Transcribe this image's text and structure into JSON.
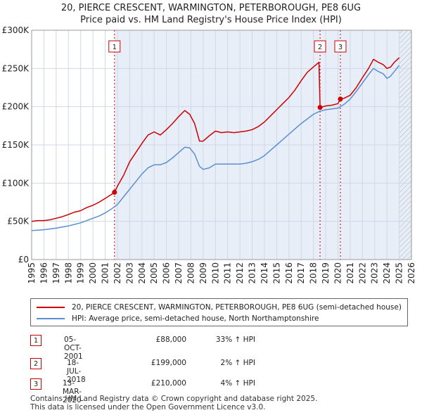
{
  "title_line1": "20, PIERCE CRESCENT, WARMINGTON, PETERBOROUGH, PE8 6UG",
  "title_line2": "Price paid vs. HM Land Registry's House Price Index (HPI)",
  "colors": {
    "property": "#cc0000",
    "hpi": "#5b8fd1",
    "shade": "#e8eef8",
    "grid": "#cfd8e8",
    "marker": "#cc0000"
  },
  "chart_data": {
    "type": "line",
    "title": "Price paid vs. HM Land Registry's House Price Index (HPI)",
    "xlim": [
      1995,
      2026
    ],
    "ylim": [
      0,
      300000
    ],
    "y_ticks": [
      0,
      50000,
      100000,
      150000,
      200000,
      250000,
      300000
    ],
    "y_tick_labels": [
      "£0",
      "£50K",
      "£100K",
      "£150K",
      "£200K",
      "£250K",
      "£300K"
    ],
    "x_ticks": [
      1995,
      1996,
      1997,
      1998,
      1999,
      2000,
      2001,
      2002,
      2003,
      2004,
      2005,
      2006,
      2007,
      2008,
      2009,
      2010,
      2011,
      2012,
      2013,
      2014,
      2015,
      2016,
      2017,
      2018,
      2019,
      2020,
      2021,
      2022,
      2023,
      2024,
      2025,
      2026
    ],
    "x_tick_labels": [
      "1995",
      "1996",
      "1997",
      "1998",
      "1999",
      "2000",
      "2001",
      "2002",
      "2003",
      "2004",
      "2005",
      "2006",
      "2007",
      "2008",
      "2009",
      "2010",
      "2011",
      "2012",
      "2013",
      "2014",
      "2015",
      "2016",
      "2017",
      "2018",
      "2019",
      "2020",
      "2021",
      "2022",
      "2023",
      "2024",
      "2025",
      "2026"
    ],
    "shaded_period": [
      2001.76,
      2026
    ],
    "hatched_period": [
      2025.0,
      2026
    ],
    "series": [
      {
        "name": "20, PIERCE CRESCENT, WARMINGTON, PETERBOROUGH, PE8 6UG (semi-detached house)",
        "x": [
          1995.0,
          1995.5,
          1996.0,
          1996.5,
          1997.0,
          1997.5,
          1998.0,
          1998.5,
          1999.0,
          1999.5,
          2000.0,
          2000.5,
          2001.0,
          2001.5,
          2001.76,
          2002.0,
          2002.5,
          2003.0,
          2003.5,
          2004.0,
          2004.5,
          2005.0,
          2005.5,
          2006.0,
          2006.5,
          2007.0,
          2007.5,
          2007.9,
          2008.3,
          2008.7,
          2009.0,
          2009.5,
          2010.0,
          2010.5,
          2011.0,
          2011.5,
          2012.0,
          2012.5,
          2013.0,
          2013.5,
          2014.0,
          2014.5,
          2015.0,
          2015.5,
          2016.0,
          2016.5,
          2017.0,
          2017.5,
          2018.0,
          2018.45,
          2018.54,
          2019.0,
          2019.5,
          2020.0,
          2020.2,
          2020.5,
          2021.0,
          2021.5,
          2022.0,
          2022.5,
          2022.9,
          2023.3,
          2023.7,
          2024.0,
          2024.3,
          2024.6,
          2025.0
        ],
        "values": [
          50000,
          51000,
          51000,
          52000,
          54000,
          56000,
          59000,
          62000,
          64000,
          68000,
          71000,
          75000,
          80000,
          85000,
          88000,
          96000,
          110000,
          128000,
          140000,
          152000,
          163000,
          167000,
          163000,
          170000,
          178000,
          187000,
          195000,
          190000,
          178000,
          155000,
          155000,
          162000,
          168000,
          166000,
          167000,
          166000,
          167000,
          168000,
          170000,
          174000,
          180000,
          188000,
          196000,
          204000,
          212000,
          222000,
          234000,
          245000,
          252000,
          258000,
          199000,
          201000,
          202000,
          204000,
          210000,
          211000,
          215000,
          225000,
          238000,
          250000,
          262000,
          258000,
          255000,
          250000,
          252000,
          258000,
          264000
        ]
      },
      {
        "name": "HPI: Average price, semi-detached house, North Northamptonshire",
        "x": [
          1995.0,
          1995.5,
          1996.0,
          1996.5,
          1997.0,
          1997.5,
          1998.0,
          1998.5,
          1999.0,
          1999.5,
          2000.0,
          2000.5,
          2001.0,
          2001.5,
          2002.0,
          2002.5,
          2003.0,
          2003.5,
          2004.0,
          2004.5,
          2005.0,
          2005.5,
          2006.0,
          2006.5,
          2007.0,
          2007.5,
          2007.9,
          2008.3,
          2008.7,
          2009.0,
          2009.5,
          2010.0,
          2010.5,
          2011.0,
          2011.5,
          2012.0,
          2012.5,
          2013.0,
          2013.5,
          2014.0,
          2014.5,
          2015.0,
          2015.5,
          2016.0,
          2016.5,
          2017.0,
          2017.5,
          2018.0,
          2018.5,
          2019.0,
          2019.5,
          2020.0,
          2020.5,
          2021.0,
          2021.5,
          2022.0,
          2022.5,
          2022.9,
          2023.3,
          2023.7,
          2024.0,
          2024.3,
          2024.6,
          2025.0
        ],
        "values": [
          38000,
          38500,
          39000,
          40000,
          41000,
          42500,
          44000,
          46000,
          48000,
          51000,
          54000,
          57000,
          61000,
          66000,
          72000,
          82000,
          92000,
          102000,
          112000,
          120000,
          124000,
          124000,
          127000,
          133000,
          140000,
          147000,
          146000,
          138000,
          122000,
          118000,
          120000,
          125000,
          125000,
          125000,
          125000,
          125000,
          126000,
          128000,
          131000,
          136000,
          143000,
          150000,
          157000,
          164000,
          171000,
          178000,
          184000,
          190000,
          194000,
          196000,
          197000,
          198000,
          203000,
          210000,
          220000,
          231000,
          242000,
          250000,
          246000,
          243000,
          237000,
          240000,
          246000,
          254000
        ]
      }
    ],
    "transactions": [
      {
        "label": "1",
        "date": "05-OCT-2001",
        "x": 2001.76,
        "price": 88000,
        "price_label": "£88,000",
        "hpi": "33% ↑ HPI"
      },
      {
        "label": "2",
        "date": "18-JUL-2018",
        "x": 2018.54,
        "price": 199000,
        "price_label": "£199,000",
        "hpi": "2% ↑ HPI"
      },
      {
        "label": "3",
        "date": "13-MAR-2020",
        "x": 2020.2,
        "price": 210000,
        "price_label": "£210,000",
        "hpi": "4% ↑ HPI"
      }
    ]
  },
  "legend": {
    "property": "20, PIERCE CRESCENT, WARMINGTON, PETERBOROUGH, PE8 6UG (semi-detached house)",
    "hpi": "HPI: Average price, semi-detached house, North Northamptonshire"
  },
  "footer": {
    "line1": "Contains HM Land Registry data © Crown copyright and database right 2025.",
    "line2": "This data is licensed under the Open Government Licence v3.0."
  }
}
